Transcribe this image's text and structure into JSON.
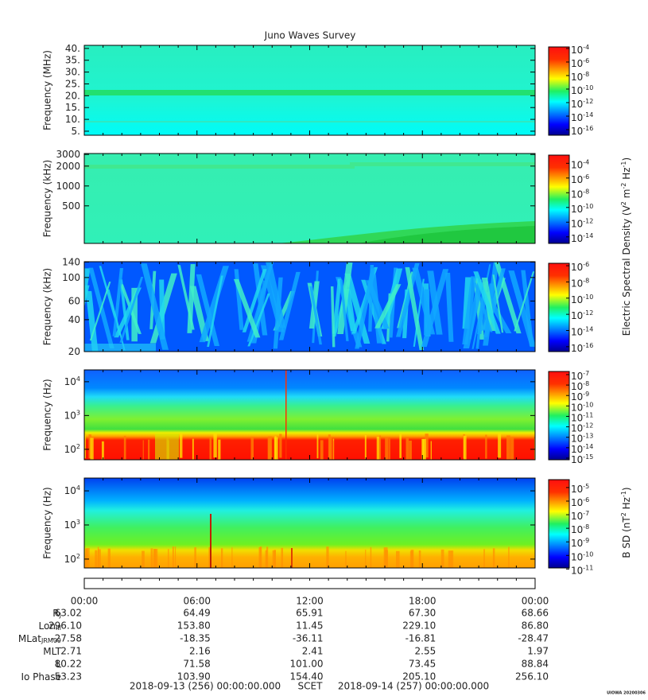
{
  "title": "Juno Waves Survey",
  "panels": [
    {
      "ylabel": "Frequency (MHz)",
      "log": false,
      "ylim": [
        3.3,
        41.3
      ],
      "yticks": [
        {
          "value": 40,
          "label": "40."
        },
        {
          "value": 35,
          "label": "35."
        },
        {
          "value": 30,
          "label": "30."
        },
        {
          "value": 25,
          "label": "25."
        },
        {
          "value": 20,
          "label": "20."
        },
        {
          "value": 15,
          "label": "15."
        },
        {
          "value": 10,
          "label": "10."
        },
        {
          "value": 5,
          "label": "5."
        }
      ],
      "clim": [
        1.5e-17,
        0.00017
      ],
      "cticks": [
        {
          "value": 0.0001,
          "label": {
            "base": "10",
            "exp": "-4"
          }
        },
        {
          "value": 1e-06,
          "label": {
            "base": "10",
            "exp": "-6"
          }
        },
        {
          "value": 1e-08,
          "label": {
            "base": "10",
            "exp": "-8"
          }
        },
        {
          "value": 1e-10,
          "label": {
            "base": "10",
            "exp": "-10"
          }
        },
        {
          "value": 1e-12,
          "label": {
            "base": "10",
            "exp": "-12"
          }
        },
        {
          "value": 1e-14,
          "label": {
            "base": "10",
            "exp": "-14"
          }
        },
        {
          "value": 1e-16,
          "label": {
            "base": "10",
            "exp": "-16"
          }
        }
      ]
    },
    {
      "ylabel": "Frequency (kHz)",
      "log": true,
      "ylim": [
        135,
        3100
      ],
      "yticks": [
        3000,
        2000,
        1000,
        500
      ],
      "clim": [
        1.3e-15,
        0.0013
      ],
      "cticks": [
        {
          "value": 0.0001,
          "label": {
            "base": "10",
            "exp": "-4"
          }
        },
        {
          "value": 1e-06,
          "label": {
            "base": "10",
            "exp": "-6"
          }
        },
        {
          "value": 1e-08,
          "label": {
            "base": "10",
            "exp": "-8"
          }
        },
        {
          "value": 1e-10,
          "label": {
            "base": "10",
            "exp": "-10"
          }
        },
        {
          "value": 1e-12,
          "label": {
            "base": "10",
            "exp": "-12"
          }
        },
        {
          "value": 1e-14,
          "label": {
            "base": "10",
            "exp": "-14"
          }
        }
      ]
    },
    {
      "ylabel": "Frequency (kHz)",
      "log": true,
      "ylim": [
        20,
        141
      ],
      "yticks": [
        140,
        100,
        60,
        40,
        20
      ],
      "clim": [
        2.5e-17,
        2e-06
      ],
      "cticks": [
        {
          "value": 1e-06,
          "label": {
            "base": "10",
            "exp": "-6"
          }
        },
        {
          "value": 1e-08,
          "label": {
            "base": "10",
            "exp": "-8"
          }
        },
        {
          "value": 1e-10,
          "label": {
            "base": "10",
            "exp": "-10"
          }
        },
        {
          "value": 1e-12,
          "label": {
            "base": "10",
            "exp": "-12"
          }
        },
        {
          "value": 1e-14,
          "label": {
            "base": "10",
            "exp": "-14"
          }
        },
        {
          "value": 1e-16,
          "label": {
            "base": "10",
            "exp": "-16"
          }
        }
      ]
    },
    {
      "ylabel": "Frequency (Hz)",
      "log": true,
      "ylim": [
        49,
        22400
      ],
      "yticks": [
        {
          "value": 10000,
          "label": {
            "base": "10",
            "exp": "4"
          }
        },
        {
          "value": 1000,
          "label": {
            "base": "10",
            "exp": "3"
          }
        },
        {
          "value": 100,
          "label": {
            "base": "10",
            "exp": "2"
          }
        }
      ],
      "clim": [
        7e-16,
        2e-07
      ],
      "cticks": [
        {
          "value": 1e-07,
          "label": {
            "base": "10",
            "exp": "-7"
          }
        },
        {
          "value": 1e-08,
          "label": {
            "base": "10",
            "exp": "-8"
          }
        },
        {
          "value": 1e-09,
          "label": {
            "base": "10",
            "exp": "-9"
          }
        },
        {
          "value": 1e-10,
          "label": {
            "base": "10",
            "exp": "-10"
          }
        },
        {
          "value": 1e-11,
          "label": {
            "base": "10",
            "exp": "-11"
          }
        },
        {
          "value": 1e-12,
          "label": {
            "base": "10",
            "exp": "-12"
          }
        },
        {
          "value": 1e-13,
          "label": {
            "base": "10",
            "exp": "-13"
          }
        },
        {
          "value": 1e-14,
          "label": {
            "base": "10",
            "exp": "-14"
          }
        },
        {
          "value": 1e-15,
          "label": {
            "base": "10",
            "exp": "-15"
          }
        }
      ]
    },
    {
      "ylabel": "Frequency (Hz)",
      "log": true,
      "ylim": [
        55,
        23700
      ],
      "yticks": [
        {
          "value": 10000,
          "label": {
            "base": "10",
            "exp": "4"
          }
        },
        {
          "value": 1000,
          "label": {
            "base": "10",
            "exp": "3"
          }
        },
        {
          "value": 100,
          "label": {
            "base": "10",
            "exp": "2"
          }
        }
      ],
      "clim": [
        1.2e-11,
        3.8e-05
      ],
      "cticks": [
        {
          "value": 1e-05,
          "label": {
            "base": "10",
            "exp": "-5"
          }
        },
        {
          "value": 1e-06,
          "label": {
            "base": "10",
            "exp": "-6"
          }
        },
        {
          "value": 1e-07,
          "label": {
            "base": "10",
            "exp": "-7"
          }
        },
        {
          "value": 1e-08,
          "label": {
            "base": "10",
            "exp": "-8"
          }
        },
        {
          "value": 1e-09,
          "label": {
            "base": "10",
            "exp": "-9"
          }
        },
        {
          "value": 1e-10,
          "label": {
            "base": "10",
            "exp": "-10"
          }
        },
        {
          "value": 1e-11,
          "label": {
            "base": "10",
            "exp": "-11"
          }
        }
      ]
    }
  ],
  "e_density_label": [
    "Electric Spectral Density (V",
    "2",
    " m",
    "-2",
    " Hz",
    "-1",
    ")"
  ],
  "b_density_label": [
    "B SD (nT",
    "2",
    " Hz",
    "-1",
    ")"
  ],
  "time_ticks": [
    "00:00",
    "06:00",
    "12:00",
    "18:00",
    "00:00"
  ],
  "ephemeris": [
    {
      "label": [
        "R",
        "J"
      ],
      "values": [
        "63.02",
        "64.49",
        "65.91",
        "67.30",
        "68.66"
      ]
    },
    {
      "label": [
        "Lon",
        "III"
      ],
      "values": [
        "296.10",
        "153.80",
        "11.45",
        "229.10",
        "86.80"
      ]
    },
    {
      "label": [
        "MLat",
        "JRM09"
      ],
      "values": [
        "-27.58",
        "-18.35",
        "-36.11",
        "-16.81",
        "-28.47"
      ]
    },
    {
      "label": [
        "MLT"
      ],
      "values": [
        "2.71",
        "2.16",
        "2.41",
        "2.55",
        "1.97"
      ]
    },
    {
      "label": [
        "L"
      ],
      "values": [
        "80.22",
        "71.58",
        "101.00",
        "73.45",
        "88.84"
      ]
    },
    {
      "label": [
        "Io Phase"
      ],
      "values": [
        "53.23",
        "103.90",
        "154.40",
        "205.10",
        "256.10"
      ]
    }
  ],
  "footer": {
    "start": "2018-09-13 (256) 00:00:00.000",
    "scet": "SCET",
    "end": "2018-09-14 (257) 00:00:00.000",
    "stamp": "UIOWA 20200306"
  }
}
